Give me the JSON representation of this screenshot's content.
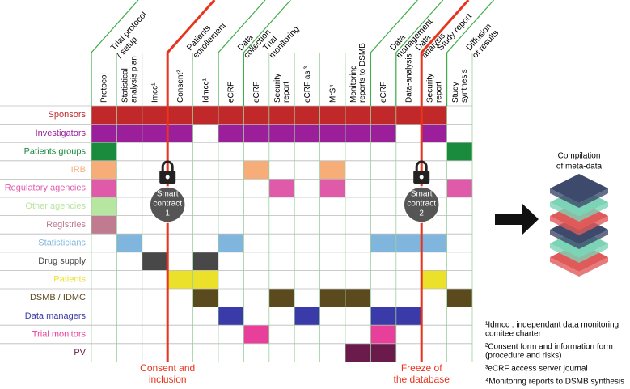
{
  "columns": [
    [
      "Protocol"
    ],
    [
      "Statistical",
      "analysis plan"
    ],
    [
      "Imcc¹"
    ],
    [
      "Consent²"
    ],
    [
      "Idmcc¹"
    ],
    [
      "eCRF"
    ],
    [
      "eCRF"
    ],
    [
      "Security",
      "report"
    ],
    [
      "eCRF asj³"
    ],
    [
      "MrS⁴"
    ],
    [
      "Monitoring",
      "reports to DSMB"
    ],
    [
      "eCRF"
    ],
    [
      "Data-analysis"
    ],
    [
      "Security",
      "report"
    ],
    [
      "Study",
      "synthesis"
    ]
  ],
  "groups": [
    {
      "lines": [
        "Trial protocol",
        "/ setup"
      ],
      "start": 0,
      "color": "#3fae49"
    },
    {
      "lines": [
        "Patients",
        "enrollement"
      ],
      "start": 3,
      "color": "#e8341c"
    },
    {
      "lines": [
        "Data",
        "collection"
      ],
      "start": 5,
      "color": "#3fae49"
    },
    {
      "lines": [
        "Trial",
        "monitoring"
      ],
      "start": 6,
      "color": "#3fae49"
    },
    {
      "lines": [
        "Data",
        "management"
      ],
      "start": 11,
      "color": "#3fae49"
    },
    {
      "lines": [
        "Data",
        "analysis"
      ],
      "start": 12,
      "color": "#3fae49"
    },
    {
      "lines": [
        "Study report"
      ],
      "start": 13,
      "color": "#e8341c"
    },
    {
      "lines": [
        "Diffusion",
        "of results"
      ],
      "start": 14,
      "color": "#3fae49"
    }
  ],
  "rows": [
    {
      "name": "Sponsors",
      "color": "#c0282a",
      "filled": [
        0,
        1,
        2,
        3,
        4,
        5,
        6,
        7,
        8,
        9,
        10,
        11,
        12,
        13
      ]
    },
    {
      "name": "Investigators",
      "color": "#9b1e9b",
      "filled": [
        0,
        1,
        2,
        3,
        5,
        6,
        7,
        8,
        9,
        10,
        11,
        13
      ]
    },
    {
      "name": "Patients groups",
      "color": "#1a8a3c",
      "filled": [
        0,
        14
      ]
    },
    {
      "name": "IRB",
      "color": "#f7ad78",
      "filled": [
        0,
        6,
        9
      ]
    },
    {
      "name": "Regulatory agencies",
      "color": "#e05aaa",
      "filled": [
        0,
        7,
        9,
        14
      ]
    },
    {
      "name": "Other agencies",
      "color": "#b6e6a0",
      "filled": [
        0
      ]
    },
    {
      "name": "Registries",
      "color": "#c07b90",
      "filled": [
        0
      ]
    },
    {
      "name": "Statisticians",
      "color": "#80b6de",
      "filled": [
        1,
        5,
        11,
        12,
        13
      ]
    },
    {
      "name": "Drug supply",
      "color": "#484848",
      "filled": [
        2,
        4
      ]
    },
    {
      "name": "Patients",
      "color": "#ece12a",
      "filled": [
        3,
        4,
        13
      ]
    },
    {
      "name": "DSMB / IDMC",
      "color": "#5a4a1e",
      "filled": [
        4,
        7,
        9,
        10,
        14
      ]
    },
    {
      "name": "Data managers",
      "color": "#3a3aa8",
      "filled": [
        5,
        8,
        11,
        12
      ]
    },
    {
      "name": "Trial monitors",
      "color": "#e8409a",
      "filled": [
        6,
        11
      ]
    },
    {
      "name": "PV",
      "color": "#6b1a4c",
      "filled": [
        10,
        11
      ]
    }
  ],
  "contracts": [
    {
      "column": 3,
      "lines": [
        "Smart",
        "contract",
        "1"
      ],
      "caption": [
        "Consent and",
        "inclusion"
      ]
    },
    {
      "column": 13,
      "lines": [
        "Smart",
        "contract",
        "2"
      ],
      "caption": [
        "Freeze of",
        "the database"
      ]
    }
  ],
  "compilation": [
    "Compilation",
    "of meta-data"
  ],
  "notes": [
    [
      "¹Idmcc : independant data monitoring",
      "comitee charter"
    ],
    [
      "²Consent form and information form",
      "(procedure and risks)"
    ],
    [
      "³eCRF access server journal"
    ],
    [
      "⁴Monitoring reports to DSMB synthesis"
    ]
  ]
}
